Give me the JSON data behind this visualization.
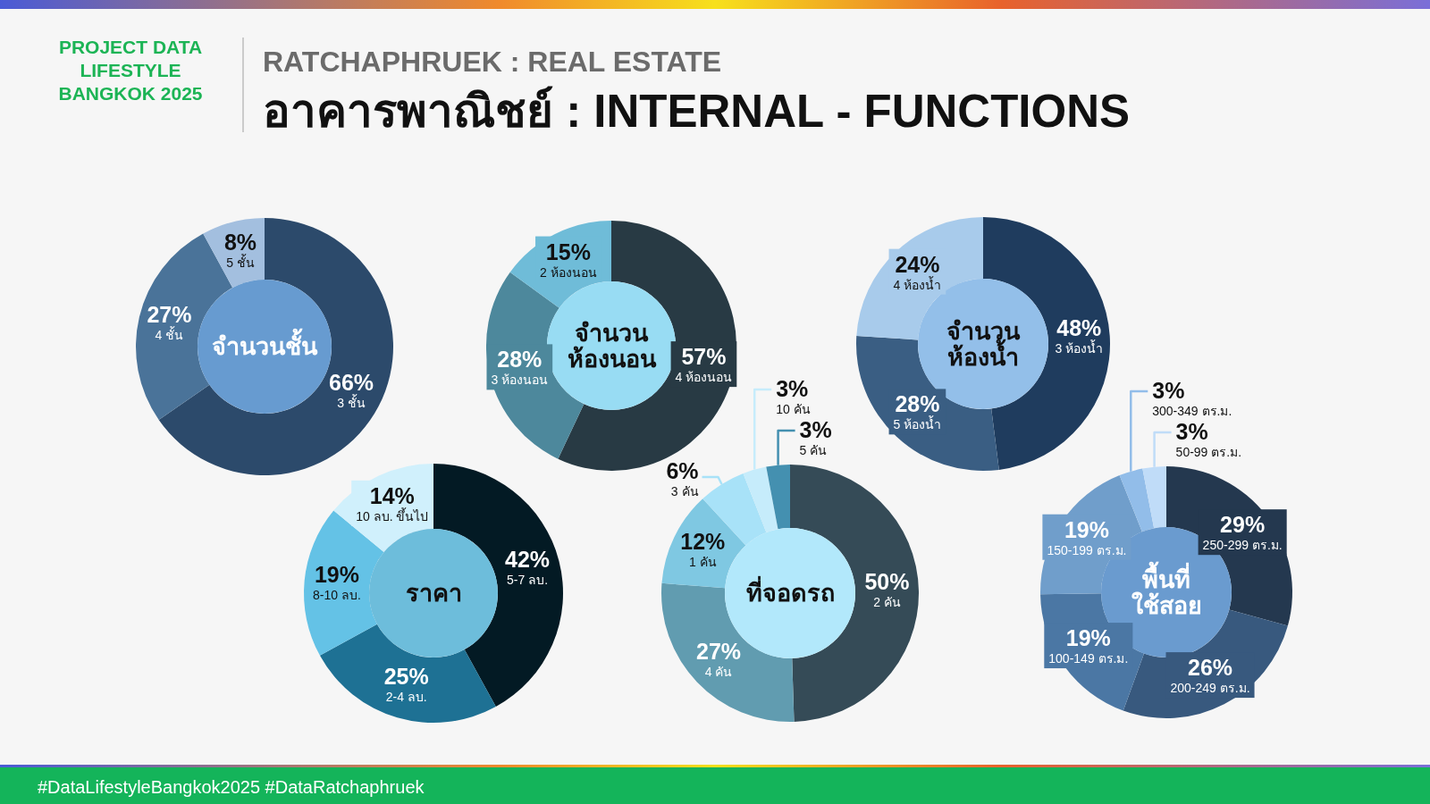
{
  "chart_data": [
    {
      "type": "other",
      "title": "อาคารพาณิชย์ : INTERNAL - FUNCTIONS",
      "subtitle": "RATCHAPHRUEK : REAL ESTATE",
      "annotations": [
        "PROJECT DATA LIFESTYLE BANGKOK 2025",
        "#DataLifestyleBangkok2025 #DataRatchaphruek"
      ]
    },
    {
      "type": "donut",
      "title": "จำนวนชั้น",
      "categories": [
        "3 ชั้น",
        "4 ชั้น",
        "5 ชั้น"
      ],
      "values": [
        66,
        27,
        8
      ],
      "colors": [
        "#2c4a6b",
        "#4a7399",
        "#a3bfdf"
      ],
      "value_labels": [
        "66%",
        "27%",
        "8%"
      ]
    },
    {
      "type": "donut",
      "title": "จำนวน\nห้องนอน",
      "categories": [
        "4 ห้องนอน",
        "3 ห้องนอน",
        "2 ห้องนอน"
      ],
      "values": [
        57,
        28,
        15
      ],
      "colors": [
        "#283a44",
        "#4d889c",
        "#6fbcd8"
      ],
      "value_labels": [
        "57%",
        "28%",
        "15%"
      ]
    },
    {
      "type": "donut",
      "title": "จำนวน\nห้องน้ำ",
      "categories": [
        "3 ห้องน้ำ",
        "5 ห้องน้ำ",
        "4 ห้องน้ำ"
      ],
      "values": [
        48,
        28,
        24
      ],
      "colors": [
        "#1f3c5e",
        "#3a5e83",
        "#a8cbeb"
      ],
      "value_labels": [
        "48%",
        "28%",
        "24%"
      ]
    },
    {
      "type": "donut",
      "title": "ราคา",
      "categories": [
        "5-7 ลบ.",
        "2-4 ลบ.",
        "8-10 ลบ.",
        "10 ลบ. ขึ้นไป"
      ],
      "values": [
        42,
        25,
        19,
        14
      ],
      "colors": [
        "#031a24",
        "#1e7194",
        "#64c2e6",
        "#d0f0fc"
      ],
      "value_labels": [
        "42%",
        "25%",
        "19%",
        "14%"
      ]
    },
    {
      "type": "donut",
      "title": "ที่จอดรถ",
      "categories": [
        "2 คัน",
        "4 คัน",
        "1 คัน",
        "3 คัน",
        "10 คัน",
        "5 คัน"
      ],
      "values": [
        50,
        27,
        12,
        6,
        3,
        3
      ],
      "colors": [
        "#354b57",
        "#619cb0",
        "#7fc8e2",
        "#a8e2f8",
        "#c6ecfb",
        "#4490b0"
      ],
      "value_labels": [
        "50%",
        "27%",
        "12%",
        "6%",
        "3%",
        "3%"
      ]
    },
    {
      "type": "donut",
      "title": "พื้นที่\nใช้สอย",
      "categories": [
        "250-299 ตร.ม.",
        "200-249 ตร.ม.",
        "100-149 ตร.ม.",
        "150-199 ตร.ม.",
        "300-349 ตร.ม.",
        "50-99 ตร.ม."
      ],
      "values": [
        29,
        26,
        19,
        19,
        3,
        3
      ],
      "colors": [
        "#24384f",
        "#38597e",
        "#4b77a4",
        "#709ecb",
        "#92bde9",
        "#c0dcf8"
      ],
      "value_labels": [
        "29%",
        "26%",
        "19%",
        "19%",
        "3%",
        "3%"
      ]
    }
  ]
}
